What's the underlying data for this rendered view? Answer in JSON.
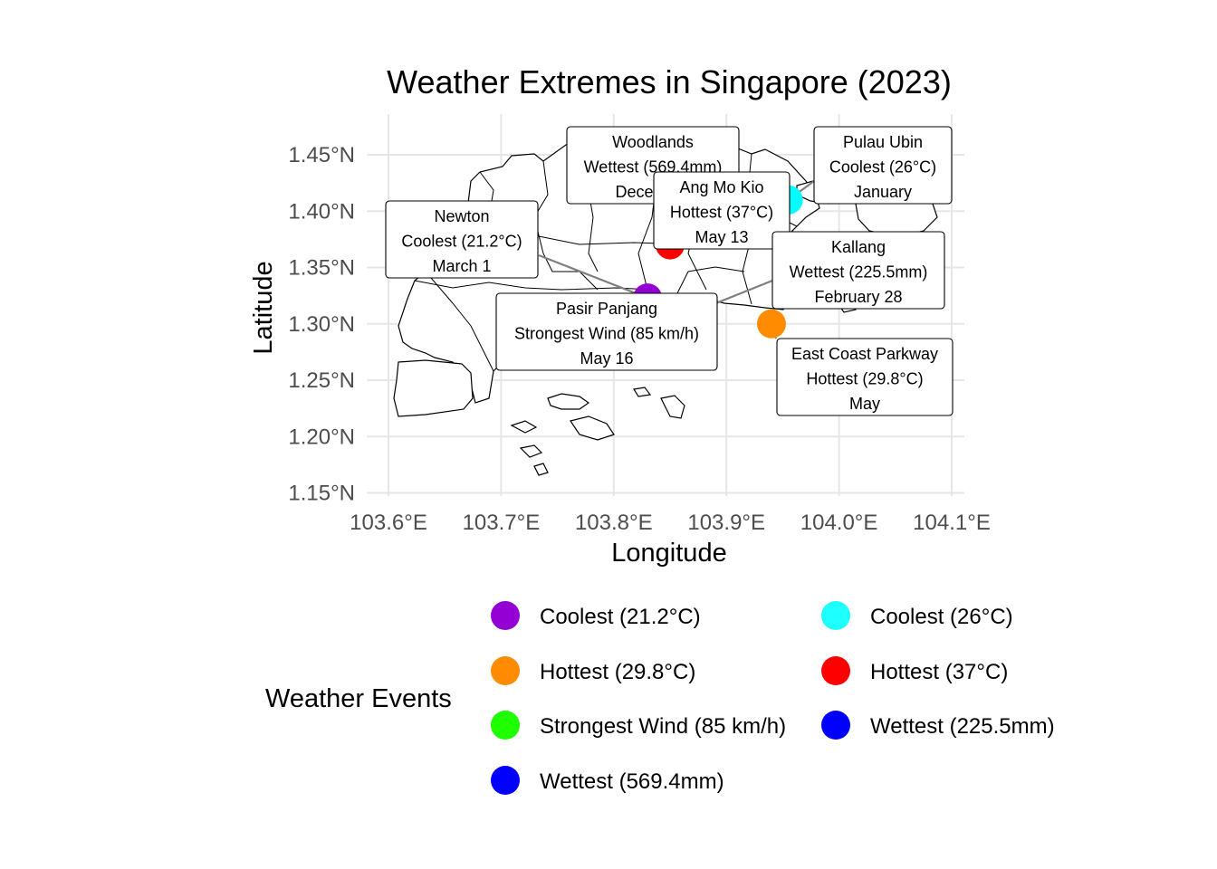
{
  "title": "Weather Extremes in Singapore (2023)",
  "x_axis": {
    "label": "Longitude",
    "ticks": [
      {
        "value": 103.6,
        "label": "103.6°E"
      },
      {
        "value": 103.7,
        "label": "103.7°E"
      },
      {
        "value": 103.8,
        "label": "103.8°E"
      },
      {
        "value": 103.9,
        "label": "103.9°E"
      },
      {
        "value": 104.0,
        "label": "104.0°E"
      },
      {
        "value": 104.1,
        "label": "104.1°E"
      }
    ]
  },
  "y_axis": {
    "label": "Latitude",
    "ticks": [
      {
        "value": 1.45,
        "label": "1.45°N"
      },
      {
        "value": 1.4,
        "label": "1.40°N"
      },
      {
        "value": 1.35,
        "label": "1.35°N"
      },
      {
        "value": 1.3,
        "label": "1.30°N"
      },
      {
        "value": 1.25,
        "label": "1.25°N"
      },
      {
        "value": 1.2,
        "label": "1.20°N"
      },
      {
        "value": 1.15,
        "label": "1.15°N"
      }
    ]
  },
  "chart_data": {
    "type": "scatter",
    "title": "Weather Extremes in Singapore (2023)",
    "xlabel": "Longitude",
    "ylabel": "Latitude",
    "xlim": [
      103.6,
      104.1
    ],
    "ylim": [
      1.15,
      1.45
    ],
    "grid": true,
    "legend_placement": "bottom",
    "points": [
      {
        "location": "Newton",
        "lon": 103.83,
        "lat": 1.323,
        "event": "Coolest (21.2°C)",
        "date": "March 1",
        "color": "#9400D3"
      },
      {
        "location": "East Coast Parkway",
        "lon": 103.94,
        "lat": 1.3,
        "event": "Hottest (29.8°C)",
        "date": "May",
        "color": "#FF8C00"
      },
      {
        "location": "Pasir Panjang",
        "lon": 103.76,
        "lat": 1.278,
        "event": "Strongest Wind (85 km/h)",
        "date": "May 16",
        "color": "#00FF00"
      },
      {
        "location": "Woodlands",
        "lon": 103.79,
        "lat": 1.436,
        "event": "Wettest (569.4mm)",
        "date": "December",
        "color": "#0000FF"
      },
      {
        "location": "Pulau Ubin",
        "lon": 103.955,
        "lat": 1.41,
        "event": "Coolest (26°C)",
        "date": "January",
        "color": "#00FFFF"
      },
      {
        "location": "Ang Mo Kio",
        "lon": 103.85,
        "lat": 1.37,
        "event": "Hottest (37°C)",
        "date": "May 13",
        "color": "#FF0000"
      },
      {
        "location": "Kallang",
        "lon": 103.87,
        "lat": 1.31,
        "event": "Wettest (225.5mm)",
        "date": "February 28",
        "color": "#0000FF"
      }
    ],
    "labels": [
      {
        "location": "Woodlands",
        "line1": "Woodlands",
        "line2": "Wettest (569.4mm)",
        "line3": "December"
      },
      {
        "location": "Pulau Ubin",
        "line1": "Pulau Ubin",
        "line2": "Coolest (26°C)",
        "line3": "January"
      },
      {
        "location": "Ang Mo Kio",
        "line1": "Ang Mo Kio",
        "line2": "Hottest (37°C)",
        "line3": "May 13"
      },
      {
        "location": "Newton",
        "line1": "Newton",
        "line2": "Coolest (21.2°C)",
        "line3": "March 1"
      },
      {
        "location": "Kallang",
        "line1": "Kallang",
        "line2": "Wettest (225.5mm)",
        "line3": "February 28"
      },
      {
        "location": "Pasir Panjang",
        "line1": "Pasir Panjang",
        "line2": "Strongest Wind (85 km/h)",
        "line3": "May 16"
      },
      {
        "location": "East Coast Parkway",
        "line1": "East Coast Parkway",
        "line2": "Hottest (29.8°C)",
        "line3": "May"
      }
    ]
  },
  "legend": {
    "title": "Weather Events",
    "items": [
      {
        "label": "Coolest (21.2°C)",
        "color": "#9400D3"
      },
      {
        "label": "Hottest (29.8°C)",
        "color": "#FF8C00"
      },
      {
        "label": "Strongest Wind (85 km/h)",
        "color": "#1EFF00"
      },
      {
        "label": "Wettest (569.4mm)",
        "color": "#0000FF"
      },
      {
        "label": "Coolest (26°C)",
        "color": "#1EFFFF"
      },
      {
        "label": "Hottest (37°C)",
        "color": "#FF0000"
      },
      {
        "label": "Wettest (225.5mm)",
        "color": "#0000FF"
      }
    ]
  }
}
